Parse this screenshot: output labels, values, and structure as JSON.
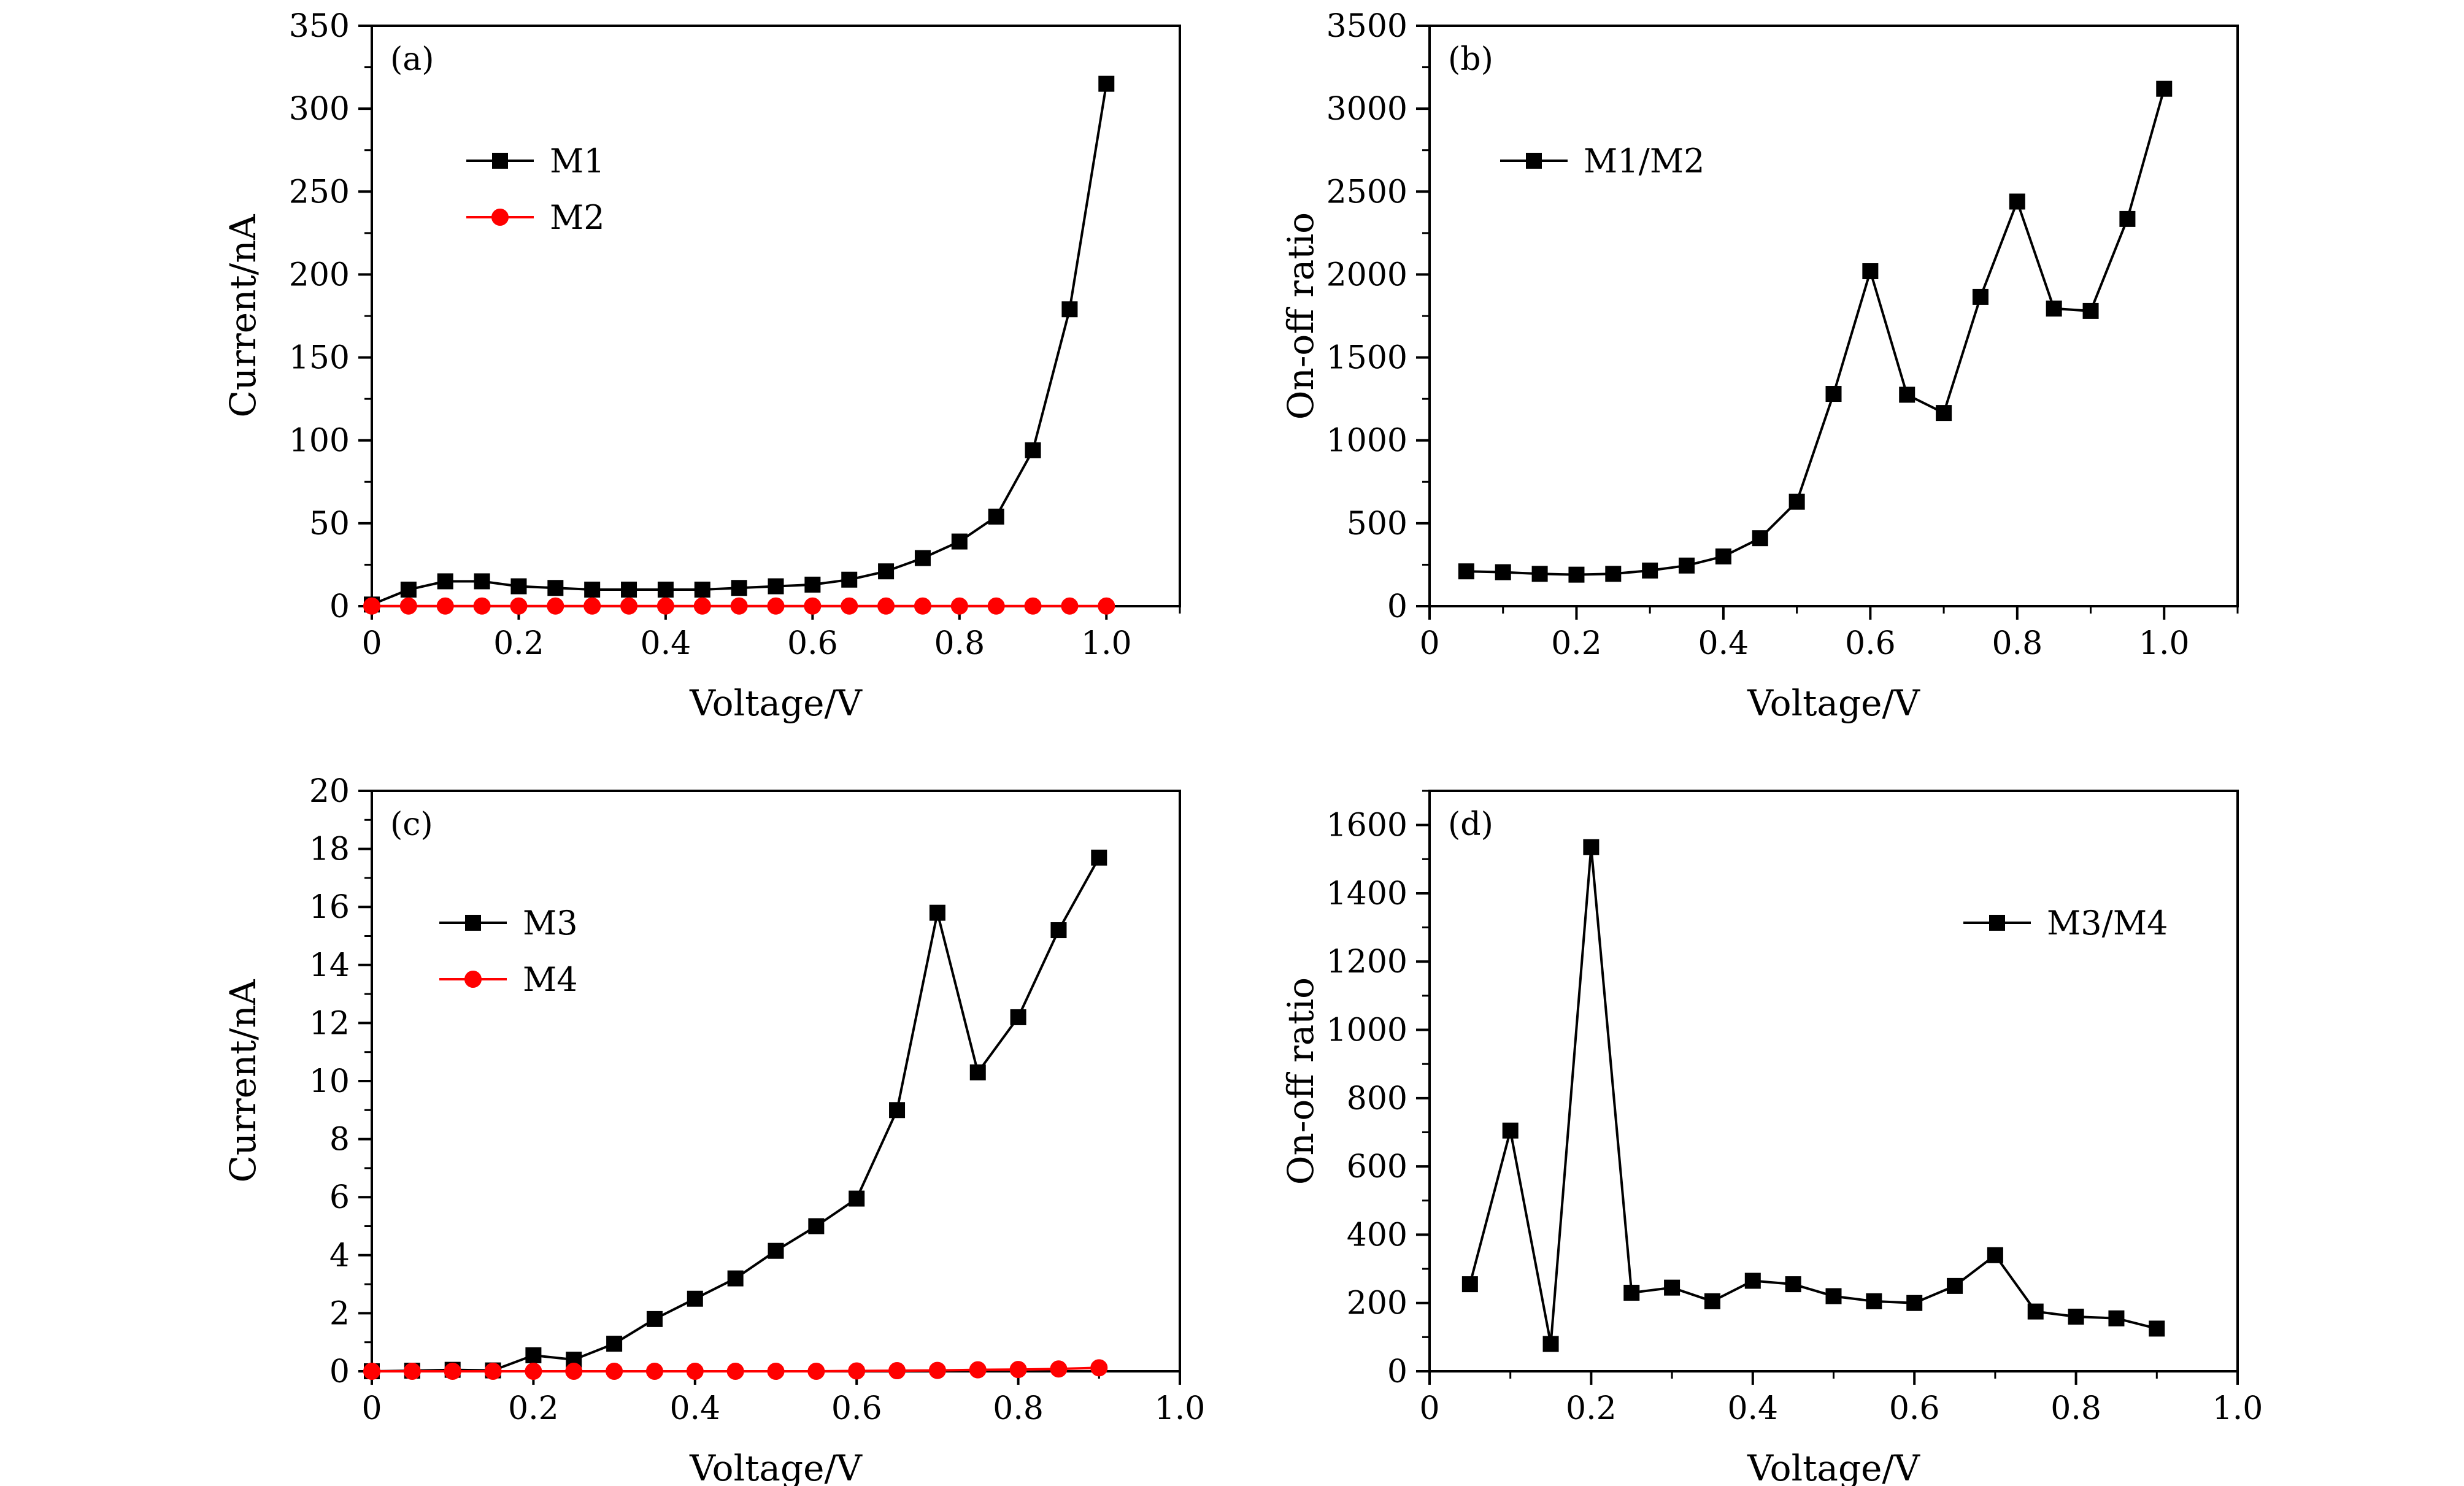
{
  "chart_data": [
    {
      "type": "line",
      "panel_label": "(a)",
      "xlabel": "Voltage/V",
      "ylabel": "Current/nA",
      "xlim": [
        0,
        1.1
      ],
      "ylim": [
        0,
        350
      ],
      "xticks": [
        0,
        0.2,
        0.4,
        0.6,
        0.8,
        1.0
      ],
      "xtick_labels": [
        "0",
        "0.2",
        "0.4",
        "0.6",
        "0.8",
        "1.0"
      ],
      "yticks": [
        0,
        50,
        100,
        150,
        200,
        250,
        300,
        350
      ],
      "ytick_labels": [
        "0",
        "50",
        "100",
        "150",
        "200",
        "250",
        "300",
        "350"
      ],
      "legend_position": "upper-left",
      "series": [
        {
          "name": "M1",
          "marker": "square",
          "color": "#000000",
          "x": [
            0,
            0.05,
            0.1,
            0.15,
            0.2,
            0.25,
            0.3,
            0.35,
            0.4,
            0.45,
            0.5,
            0.55,
            0.6,
            0.65,
            0.7,
            0.75,
            0.8,
            0.85,
            0.9,
            0.95,
            1.0
          ],
          "y": [
            1,
            10,
            15,
            15,
            12,
            11,
            10,
            10,
            10,
            10,
            11,
            12,
            13,
            16,
            21,
            29,
            39,
            54,
            94,
            179,
            315
          ]
        },
        {
          "name": "M2",
          "marker": "circle",
          "color": "#ff0000",
          "x": [
            0,
            0.05,
            0.1,
            0.15,
            0.2,
            0.25,
            0.3,
            0.35,
            0.4,
            0.45,
            0.5,
            0.55,
            0.6,
            0.65,
            0.7,
            0.75,
            0.8,
            0.85,
            0.9,
            0.95,
            1.0
          ],
          "y": [
            0.1,
            0.1,
            0.1,
            0.1,
            0.1,
            0.1,
            0.1,
            0.1,
            0.1,
            0.1,
            0.1,
            0.1,
            0.1,
            0.1,
            0.1,
            0.1,
            0.1,
            0.1,
            0.1,
            0.1,
            0.1
          ]
        }
      ]
    },
    {
      "type": "line",
      "panel_label": "(b)",
      "xlabel": "Voltage/V",
      "ylabel": "On-off ratio",
      "xlim": [
        0,
        1.1
      ],
      "ylim": [
        0,
        3500
      ],
      "xticks": [
        0,
        0.2,
        0.4,
        0.6,
        0.8,
        1.0
      ],
      "xtick_labels": [
        "0",
        "0.2",
        "0.4",
        "0.6",
        "0.8",
        "1.0"
      ],
      "yticks": [
        0,
        500,
        1000,
        1500,
        2000,
        2500,
        3000,
        3500
      ],
      "ytick_labels": [
        "0",
        "500",
        "1000",
        "1500",
        "2000",
        "2500",
        "3000",
        "3500"
      ],
      "legend_position": "upper-left",
      "series": [
        {
          "name": "M1/M2",
          "marker": "square",
          "color": "#000000",
          "x": [
            0.05,
            0.1,
            0.15,
            0.2,
            0.25,
            0.3,
            0.35,
            0.4,
            0.45,
            0.5,
            0.55,
            0.6,
            0.65,
            0.7,
            0.75,
            0.8,
            0.85,
            0.9,
            0.95,
            1.0
          ],
          "y": [
            210,
            205,
            195,
            190,
            195,
            215,
            245,
            300,
            410,
            630,
            1280,
            2020,
            1275,
            1165,
            1865,
            2440,
            1795,
            1780,
            2335,
            3120
          ]
        }
      ]
    },
    {
      "type": "line",
      "panel_label": "(c)",
      "xlabel": "Voltage/V",
      "ylabel": "Current/nA",
      "xlim": [
        0,
        1.0
      ],
      "ylim": [
        0,
        20
      ],
      "xticks": [
        0,
        0.2,
        0.4,
        0.6,
        0.8,
        1.0
      ],
      "xtick_labels": [
        "0",
        "0.2",
        "0.4",
        "0.6",
        "0.8",
        "1.0"
      ],
      "yticks": [
        0,
        2,
        4,
        6,
        8,
        10,
        12,
        14,
        16,
        18,
        20
      ],
      "ytick_labels": [
        "0",
        "2",
        "4",
        "6",
        "8",
        "10",
        "12",
        "14",
        "16",
        "18",
        "20"
      ],
      "legend_position": "middle-left",
      "series": [
        {
          "name": "M3",
          "marker": "square",
          "color": "#000000",
          "x": [
            0,
            0.05,
            0.1,
            0.15,
            0.2,
            0.25,
            0.3,
            0.35,
            0.4,
            0.45,
            0.5,
            0.55,
            0.6,
            0.65,
            0.7,
            0.75,
            0.8,
            0.85,
            0.9
          ],
          "y": [
            0,
            0.02,
            0.05,
            0.03,
            0.55,
            0.4,
            0.95,
            1.8,
            2.5,
            3.2,
            4.15,
            5.0,
            5.95,
            9.0,
            15.8,
            10.3,
            12.2,
            15.2,
            17.7
          ]
        },
        {
          "name": "M4",
          "marker": "circle",
          "color": "#ff0000",
          "x": [
            0,
            0.05,
            0.1,
            0.15,
            0.2,
            0.25,
            0.3,
            0.35,
            0.4,
            0.45,
            0.5,
            0.55,
            0.6,
            0.65,
            0.7,
            0.75,
            0.8,
            0.85,
            0.9
          ],
          "y": [
            0,
            0,
            0,
            0,
            0,
            0,
            0,
            0,
            0,
            0,
            0,
            0,
            0.01,
            0.02,
            0.03,
            0.05,
            0.06,
            0.08,
            0.12
          ]
        }
      ]
    },
    {
      "type": "line",
      "panel_label": "(d)",
      "xlabel": "Voltage/V",
      "ylabel": "On-off ratio",
      "xlim": [
        0,
        1.0
      ],
      "ylim": [
        0,
        1700
      ],
      "xticks": [
        0,
        0.2,
        0.4,
        0.6,
        0.8,
        1.0
      ],
      "xtick_labels": [
        "0",
        "0.2",
        "0.4",
        "0.6",
        "0.8",
        "1.0"
      ],
      "yticks": [
        0,
        200,
        400,
        600,
        800,
        1000,
        1200,
        1400,
        1600
      ],
      "ytick_labels": [
        "0",
        "200",
        "400",
        "600",
        "800",
        "1000",
        "1200",
        "1400",
        "1600"
      ],
      "legend_position": "upper-right",
      "series": [
        {
          "name": "M3/M4",
          "marker": "square",
          "color": "#000000",
          "x": [
            0.05,
            0.1,
            0.15,
            0.2,
            0.25,
            0.3,
            0.35,
            0.4,
            0.45,
            0.5,
            0.55,
            0.6,
            0.65,
            0.7,
            0.75,
            0.8,
            0.85,
            0.9
          ],
          "y": [
            255,
            705,
            80,
            1535,
            230,
            245,
            205,
            265,
            255,
            220,
            205,
            200,
            250,
            340,
            175,
            160,
            155,
            125
          ]
        }
      ]
    }
  ]
}
